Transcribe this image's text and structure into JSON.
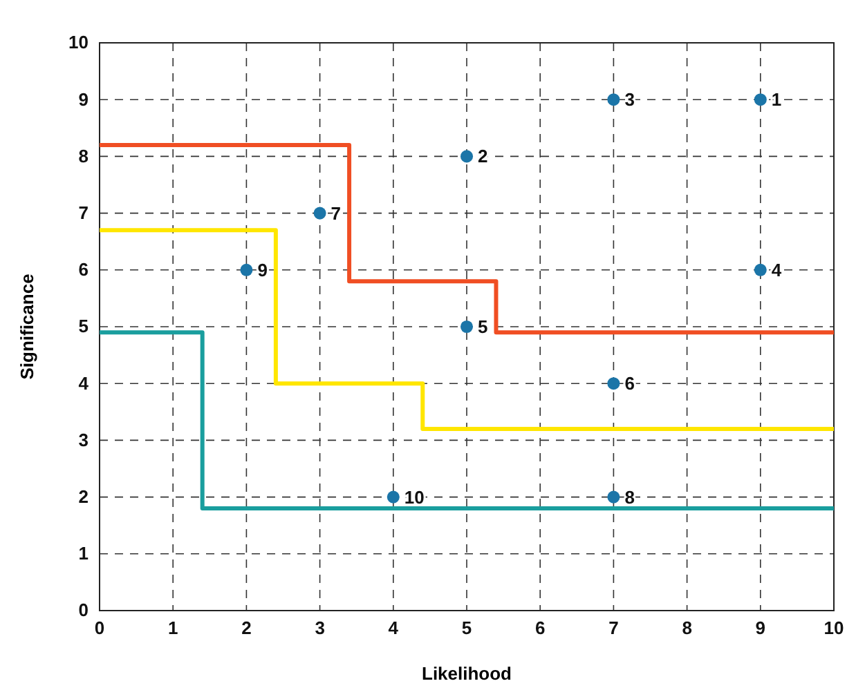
{
  "chart_data": {
    "type": "scatter",
    "xlabel": "Likelihood",
    "ylabel": "Significance",
    "xlim": [
      0,
      10
    ],
    "ylim": [
      0,
      10
    ],
    "xticks": [
      0,
      1,
      2,
      3,
      4,
      5,
      6,
      7,
      8,
      9,
      10
    ],
    "yticks": [
      0,
      1,
      2,
      3,
      4,
      5,
      6,
      7,
      8,
      9,
      10
    ],
    "grid": true,
    "series": [
      {
        "type": "step",
        "color": "#f04e23",
        "x": [
          0,
          3.4,
          5.4,
          10
        ],
        "values": [
          8.2,
          5.8,
          4.9,
          4.9
        ]
      },
      {
        "type": "step",
        "color": "#ffe600",
        "x": [
          0,
          2.4,
          4.4,
          10
        ],
        "values": [
          6.7,
          4.0,
          3.2,
          3.2
        ]
      },
      {
        "type": "step",
        "color": "#1a9e9e",
        "x": [
          0,
          1.4,
          10
        ],
        "values": [
          4.9,
          1.8,
          1.8
        ]
      },
      {
        "color": "#1b75a8",
        "marker": "circle",
        "x": [
          9,
          5,
          7,
          9,
          5,
          7,
          3,
          7,
          2,
          4
        ],
        "values": [
          9,
          8,
          9,
          6,
          5,
          4,
          7,
          2,
          6,
          2
        ]
      }
    ],
    "annotations": [
      {
        "text": "1",
        "x": 9,
        "y": 9
      },
      {
        "text": "2",
        "x": 5,
        "y": 8
      },
      {
        "text": "3",
        "x": 7,
        "y": 9
      },
      {
        "text": "4",
        "x": 9,
        "y": 6
      },
      {
        "text": "5",
        "x": 5,
        "y": 5
      },
      {
        "text": "6",
        "x": 7,
        "y": 4
      },
      {
        "text": "7",
        "x": 3,
        "y": 7
      },
      {
        "text": "8",
        "x": 7,
        "y": 2
      },
      {
        "text": "9",
        "x": 2,
        "y": 6
      },
      {
        "text": "10",
        "x": 4,
        "y": 2
      }
    ]
  }
}
